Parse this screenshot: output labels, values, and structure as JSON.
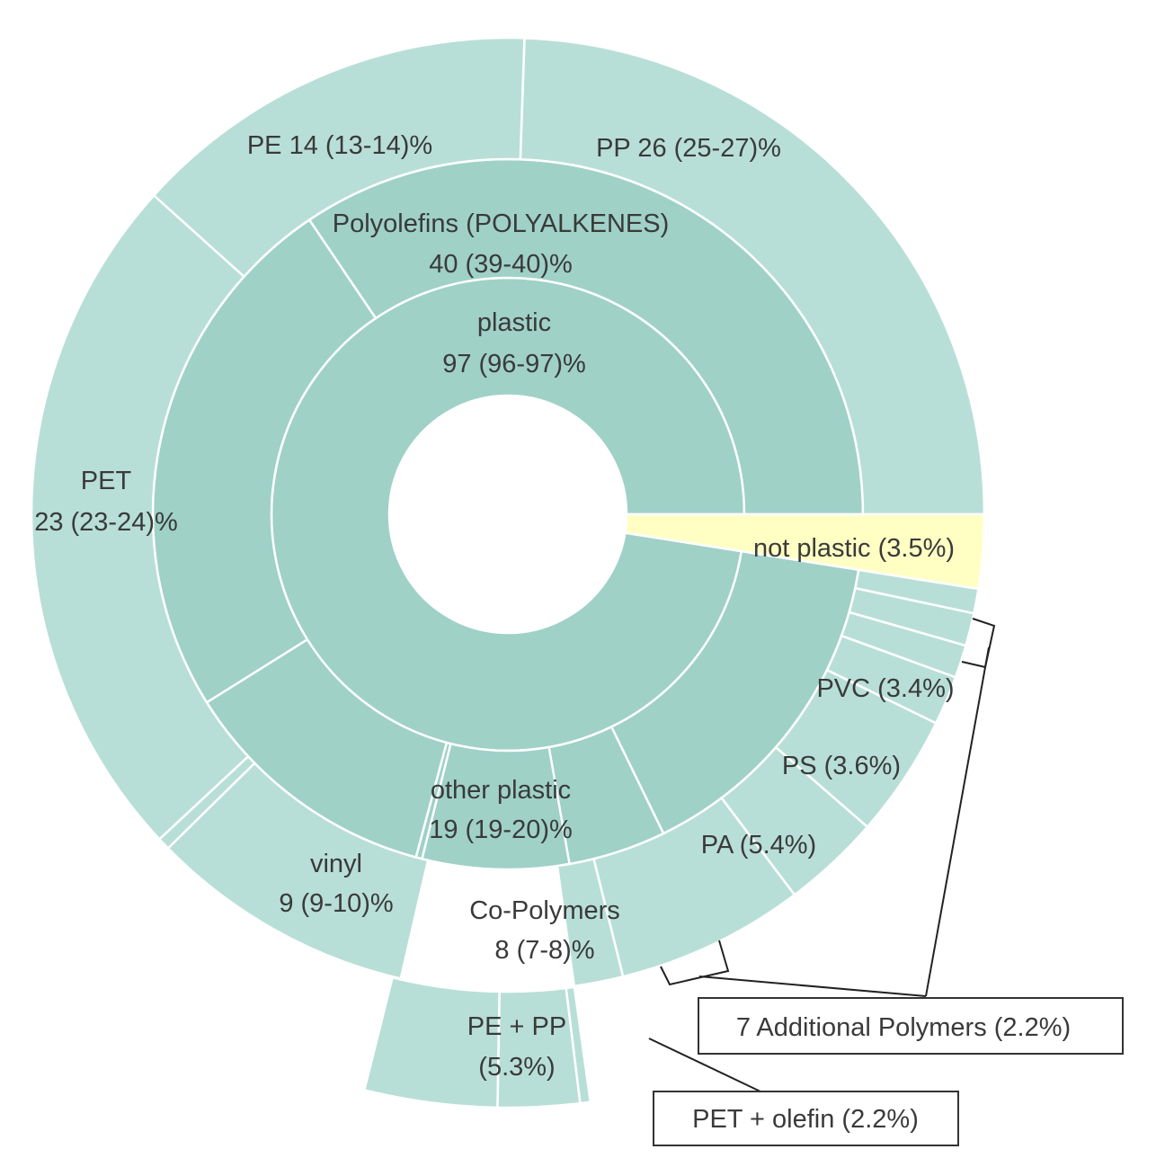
{
  "chart_data": {
    "type": "sunburst",
    "title": "",
    "colors": {
      "inner": "#9fd1c7",
      "ring2": "#9fd1c7",
      "outer": "#b8dfd7",
      "not_plastic": "#ffffc4",
      "stroke": "#ffffff",
      "callout_line": "#222222"
    },
    "unit": "%",
    "rings": [
      {
        "name": "level-1",
        "segments": [
          {
            "id": "plastic",
            "label": "plastic",
            "value_label": "97 (96-97)%",
            "value": 96.5,
            "color_key": "inner"
          },
          {
            "id": "not-plastic",
            "label": "not plastic (3.5%)",
            "value": 3.5,
            "color_key": "not_plastic"
          }
        ]
      },
      {
        "name": "level-2",
        "segments": [
          {
            "id": "polyolefins",
            "label": "Polyolefins (POLYALKENES)",
            "value_label": "40 (39-40)%",
            "value": 39.6
          },
          {
            "id": "pet-mid",
            "label": "",
            "value": 23.6
          },
          {
            "id": "other-plastic",
            "label": "other plastic",
            "value_label": "19 (19-20)%",
            "value": 19.3
          },
          {
            "id": "vinyl-mid",
            "label": "",
            "value": 6.5
          },
          {
            "id": "co-polymers",
            "label": "Co-Polymers",
            "value_label": "8 (7-8)%",
            "value": 7.5
          }
        ]
      },
      {
        "name": "level-3",
        "segments": [
          {
            "id": "pp",
            "label": "PP 26 (25-27)%",
            "value": 26.0
          },
          {
            "id": "pe",
            "label": "PE 14 (13-14)%",
            "value": 13.6
          },
          {
            "id": "pet",
            "label": "PET",
            "value_label": "23 (23-24)%",
            "value": 23.6
          },
          {
            "id": "vinyl",
            "label": "vinyl",
            "value_label": "9 (9-10)%",
            "value": 9.3
          },
          {
            "id": "pe-pp",
            "label": "PE + PP",
            "value_label": "(5.3%)",
            "value": 5.3
          },
          {
            "id": "pet-olefin",
            "label": "PET + olefin (2.2%)",
            "value": 2.2
          },
          {
            "id": "additional",
            "label": "7 Additional Polymers (2.2%)",
            "value": 2.2
          },
          {
            "id": "pa",
            "label": "PA (5.4%)",
            "value": 5.4
          },
          {
            "id": "ps",
            "label": "PS (3.6%)",
            "value": 3.6
          },
          {
            "id": "pvc",
            "label": "PVC (3.4%)",
            "value": 3.4
          },
          {
            "id": "tiny-polymers",
            "label": "",
            "value": 2.2
          }
        ]
      }
    ],
    "callouts": [
      {
        "id": "additional-polymers",
        "text": "7 Additional Polymers (2.2%)"
      },
      {
        "id": "pet-olefin",
        "text": "PET + olefin (2.2%)"
      }
    ],
    "grid": false,
    "legend": "none"
  }
}
